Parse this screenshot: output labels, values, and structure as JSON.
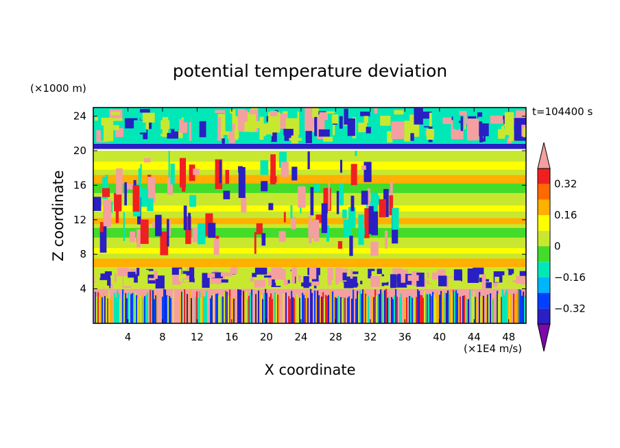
{
  "chart_data": {
    "type": "heatmap",
    "title": "potential temperature deviation",
    "xlabel": "X coordinate",
    "ylabel": "Z coordinate",
    "x_unit": "(×1E4 m/s)",
    "y_unit": "(×1000 m)",
    "time_label": "t=104400 s",
    "xlim": [
      0,
      50
    ],
    "ylim": [
      0,
      25
    ],
    "x_ticks": [
      4,
      8,
      12,
      16,
      20,
      24,
      28,
      32,
      36,
      40,
      44,
      48
    ],
    "y_ticks": [
      4,
      8,
      12,
      16,
      20,
      24
    ],
    "colorbar": {
      "levels": [
        -0.4,
        -0.32,
        -0.24,
        -0.16,
        -0.08,
        0,
        0.08,
        0.16,
        0.24,
        0.32,
        0.4
      ],
      "colors": [
        "#7b0aa8",
        "#2a1fc2",
        "#0040ff",
        "#00b4ff",
        "#00e8b8",
        "#44dc2a",
        "#c8e830",
        "#ffff00",
        "#ffb000",
        "#ff6a00",
        "#f02020",
        "#f4a0a0"
      ],
      "tick_labels": [
        "0.32",
        "0.16",
        "0",
        "-0.16",
        "-0.32"
      ],
      "tick_values": [
        0.32,
        0.16,
        0,
        -0.16,
        -0.32
      ],
      "extend": "both"
    },
    "regions": [
      {
        "z_range": [
          0,
          4
        ],
        "x_range": [
          0,
          50
        ],
        "pattern": "vertical streaks",
        "values": [
          -0.4,
          -0.32,
          -0.16,
          0,
          0.16,
          0.32,
          0.4
        ]
      },
      {
        "z_range": [
          4,
          6.5
        ],
        "x_range": [
          0,
          50
        ],
        "pattern": "mixed band",
        "values": [
          -0.4,
          0.4,
          0
        ]
      },
      {
        "z_range": [
          6.5,
          7.5
        ],
        "x_range": [
          0,
          50
        ],
        "pattern": "uniform band",
        "values": [
          0.16
        ]
      },
      {
        "z_range": [
          7.5,
          20
        ],
        "x_range": [
          0,
          50
        ],
        "pattern": "horizontal layers",
        "values": [
          0,
          0.08,
          0.16,
          -0.08
        ]
      },
      {
        "z_range": [
          20.2,
          20.8
        ],
        "x_range": [
          0,
          50
        ],
        "pattern": "thin band",
        "values": [
          -0.4
        ]
      },
      {
        "z_range": [
          20.8,
          25
        ],
        "x_range": [
          0,
          50
        ],
        "pattern": "mixed",
        "values": [
          -0.4,
          0.4,
          0,
          -0.16
        ]
      }
    ]
  }
}
